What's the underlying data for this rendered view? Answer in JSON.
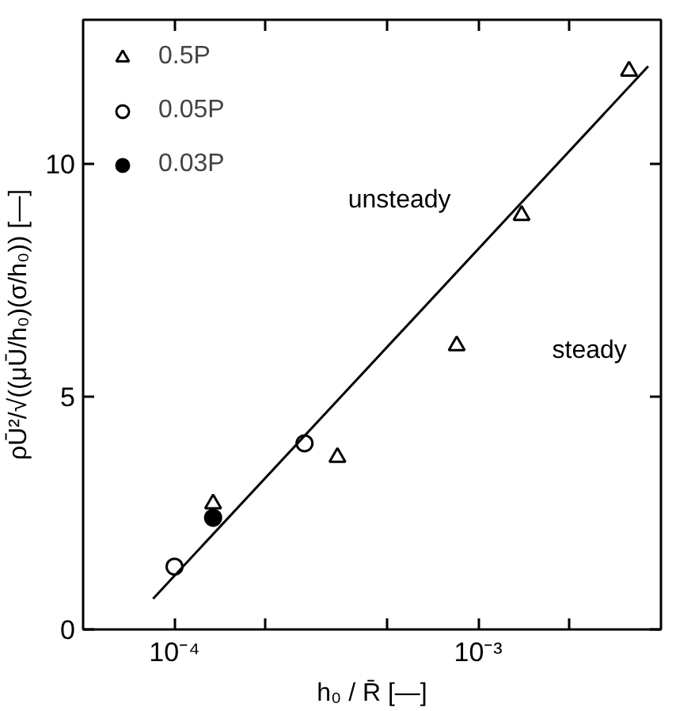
{
  "chart_data": {
    "type": "scatter",
    "xlabel": "h₀ / R̄ [—]",
    "ylabel": "ρŪ²/√((μŪ/h₀)(σ/h₀)) [—]",
    "log": "x",
    "xlim": [
      5e-05,
      0.004
    ],
    "ylim": [
      0,
      13.1
    ],
    "xticks": [
      {
        "value": 0.0001,
        "label": "10⁻⁴"
      },
      {
        "value": 0.0002,
        "label": null
      },
      {
        "value": 0.0005,
        "label": null
      },
      {
        "value": 0.001,
        "label": "10⁻³"
      },
      {
        "value": 0.002,
        "label": null
      }
    ],
    "yticks": [
      0,
      5,
      10
    ],
    "grid": false,
    "legend": "top left",
    "series": [
      {
        "name": "0.5P",
        "color": "#000000",
        "marker": "triangle",
        "x": [
          0.000134,
          0.000344,
          0.00085,
          0.00139,
          0.00314
        ],
        "values": [
          2.7,
          3.7,
          6.1,
          8.9,
          12.0
        ]
      },
      {
        "name": "0.05P",
        "color": "#000000",
        "marker": "circle",
        "x": [
          0.0001,
          0.000268
        ],
        "values": [
          1.35,
          4.0
        ]
      },
      {
        "name": "0.03P",
        "color": "#000000",
        "marker": "circle",
        "x": [
          0.000134
        ],
        "values": [
          2.4
        ]
      },
      {
        "type": "line",
        "color": "#000000",
        "line_style": "solid",
        "x": [
          8.5e-05,
          0.00363
        ],
        "values": [
          0.66,
          12.1
        ]
      }
    ],
    "annotations": [
      "unsteady",
      "steady"
    ]
  }
}
